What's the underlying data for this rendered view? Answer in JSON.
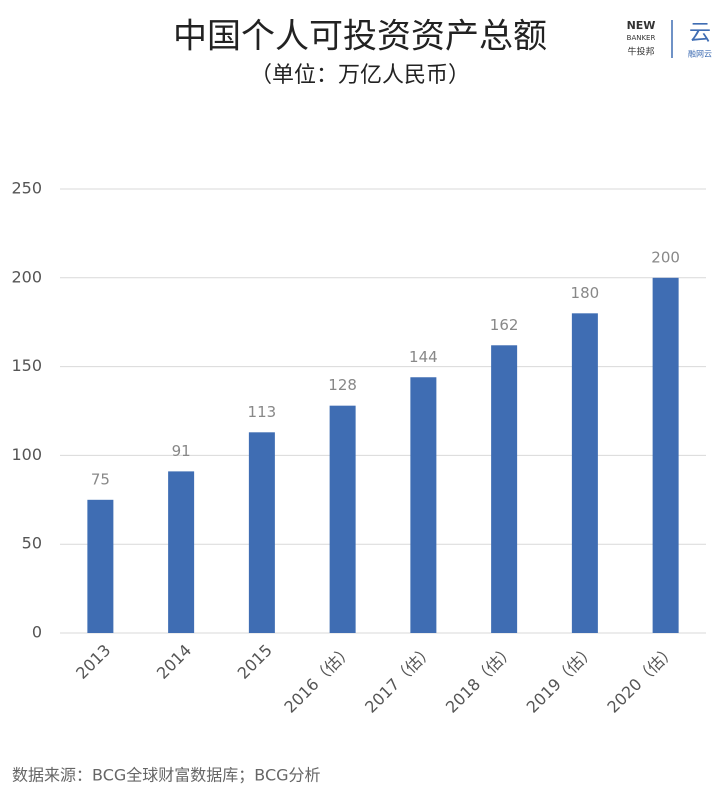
{
  "chart_data": {
    "type": "bar",
    "title": "中国个人可投资资产总额",
    "subtitle": "（单位：万亿人民币）",
    "categories": [
      "2013",
      "2014",
      "2015",
      "2016（估）",
      "2017（估）",
      "2018（估）",
      "2019（估）",
      "2020（估）"
    ],
    "values": [
      75,
      91,
      113,
      128,
      144,
      162,
      180,
      200
    ],
    "color": "#3f6db3",
    "ylim": [
      0,
      250
    ],
    "yticks": [
      0,
      50,
      100,
      150,
      200,
      250
    ],
    "grid": true,
    "source": "数据来源：BCG全球财富数据库；BCG分析"
  },
  "logos": [
    "NEW",
    "BANKER",
    "牛投邦",
    "云",
    "融网云"
  ]
}
